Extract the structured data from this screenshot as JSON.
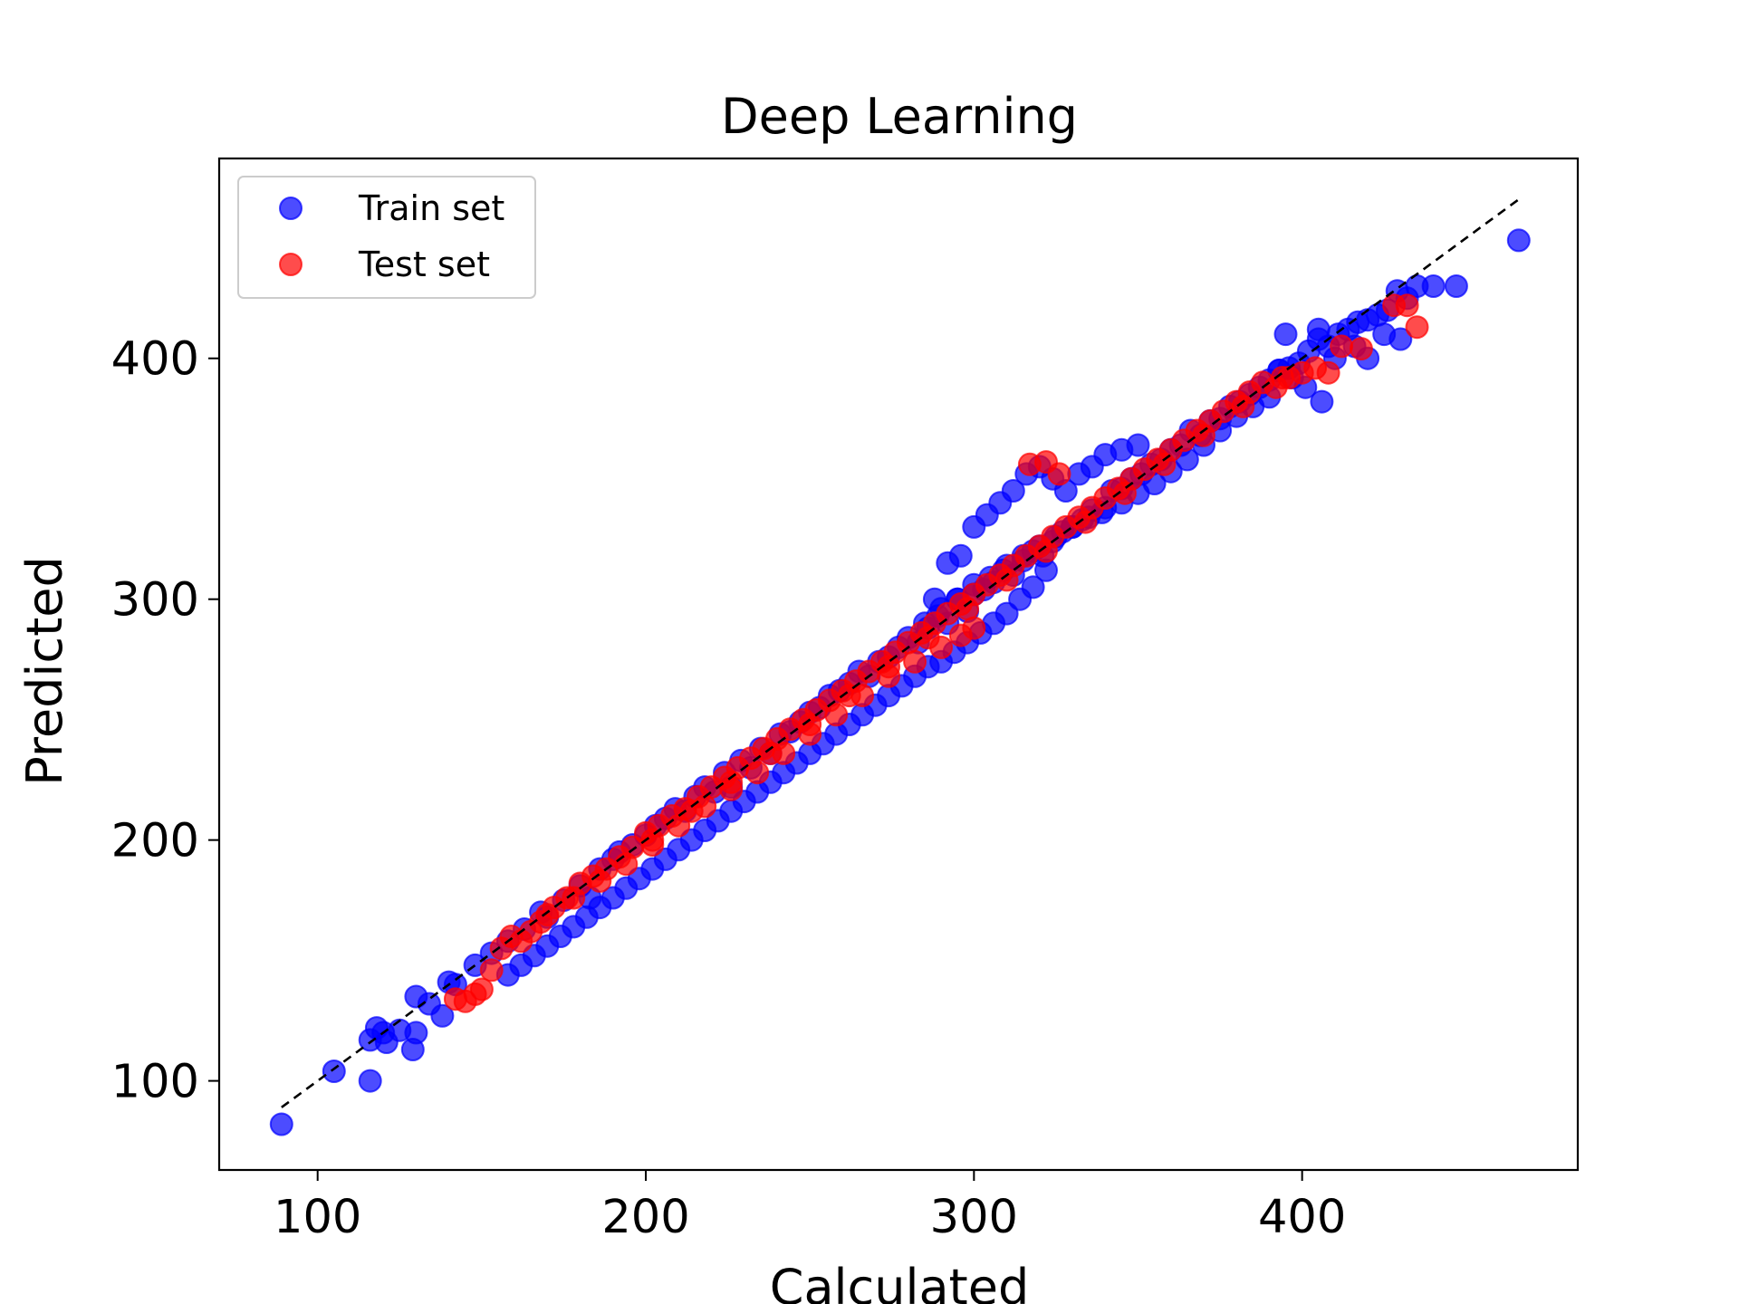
{
  "chart_data": {
    "type": "scatter",
    "title": "Deep Learning",
    "xlabel": "Calculated",
    "ylabel": "Predicted",
    "xlim": [
      70,
      484
    ],
    "ylim": [
      63,
      483
    ],
    "xticks": [
      100,
      200,
      300,
      400
    ],
    "yticks": [
      100,
      200,
      300,
      400
    ],
    "grid": false,
    "legend_position": "upper-left",
    "reference_line": {
      "style": "dashed",
      "color": "#000000",
      "x": [
        89,
        466
      ],
      "y": [
        89,
        466
      ]
    },
    "series": [
      {
        "name": "Train set",
        "color": "#0000ff",
        "alpha": 0.7,
        "x": [
          89,
          105,
          116,
          116,
          118,
          120,
          121,
          125,
          129,
          130,
          130,
          134,
          138,
          140,
          142,
          148,
          153,
          158,
          163,
          168,
          170,
          175,
          180,
          183,
          186,
          190,
          192,
          196,
          200,
          203,
          206,
          209,
          212,
          215,
          218,
          221,
          224,
          226,
          229,
          232,
          235,
          238,
          241,
          244,
          247,
          250,
          253,
          256,
          259,
          262,
          265,
          268,
          271,
          274,
          277,
          280,
          283,
          286,
          289,
          292,
          295,
          298,
          300,
          303,
          306,
          309,
          312,
          315,
          318,
          321,
          324,
          327,
          330,
          333,
          336,
          339,
          342,
          345,
          348,
          351,
          354,
          357,
          360,
          363,
          366,
          369,
          372,
          375,
          378,
          381,
          384,
          387,
          390,
          393,
          396,
          399,
          402,
          405,
          408,
          411,
          414,
          417,
          420,
          423,
          426,
          429,
          432,
          435,
          440,
          447,
          466,
          288,
          292,
          296,
          300,
          304,
          308,
          312,
          316,
          320,
          324,
          328,
          332,
          336,
          340,
          345,
          350,
          322,
          318,
          314,
          310,
          306,
          302,
          298,
          294,
          290,
          286,
          282,
          278,
          274,
          270,
          266,
          262,
          258,
          254,
          250,
          246,
          242,
          238,
          234,
          230,
          226,
          222,
          218,
          214,
          210,
          206,
          202,
          198,
          194,
          190,
          186,
          182,
          178,
          174,
          170,
          166,
          162,
          158,
          395,
          393,
          405,
          410,
          416,
          420,
          425,
          430,
          406,
          401,
          397,
          390,
          385,
          380,
          375,
          370,
          365,
          360,
          355,
          350,
          345,
          340,
          335,
          330,
          325,
          320,
          315,
          310,
          305,
          300,
          295,
          290,
          285
        ],
        "y": [
          82,
          104,
          100,
          117,
          122,
          120,
          116,
          121,
          113,
          135,
          120,
          132,
          127,
          141,
          140,
          148,
          153,
          158,
          163,
          170,
          168,
          175,
          181,
          176,
          188,
          192,
          195,
          198,
          202,
          206,
          209,
          213,
          212,
          218,
          222,
          220,
          228,
          222,
          233,
          230,
          238,
          236,
          244,
          245,
          249,
          253,
          255,
          260,
          262,
          265,
          270,
          268,
          274,
          276,
          280,
          284,
          282,
          288,
          293,
          290,
          300,
          295,
          302,
          304,
          307,
          312,
          310,
          316,
          320,
          318,
          324,
          328,
          330,
          333,
          337,
          336,
          345,
          346,
          350,
          352,
          356,
          358,
          362,
          364,
          370,
          368,
          374,
          375,
          380,
          382,
          385,
          388,
          391,
          395,
          396,
          398,
          403,
          408,
          405,
          410,
          412,
          415,
          416,
          418,
          420,
          428,
          425,
          430,
          430,
          430,
          449,
          300,
          315,
          318,
          330,
          335,
          340,
          345,
          352,
          355,
          350,
          345,
          352,
          355,
          360,
          362,
          364,
          312,
          305,
          300,
          294,
          290,
          286,
          282,
          278,
          274,
          272,
          268,
          264,
          260,
          256,
          252,
          248,
          244,
          240,
          236,
          232,
          228,
          224,
          220,
          216,
          212,
          208,
          204,
          200,
          196,
          192,
          188,
          184,
          180,
          176,
          172,
          168,
          164,
          160,
          156,
          152,
          148,
          144,
          410,
          395,
          412,
          400,
          405,
          400,
          410,
          408,
          382,
          388,
          392,
          384,
          380,
          376,
          370,
          364,
          358,
          353,
          348,
          344,
          340,
          338,
          334,
          330,
          326,
          322,
          318,
          314,
          309,
          306,
          300,
          296,
          290
        ]
      },
      {
        "name": "Test set",
        "color": "#ff0000",
        "alpha": 0.7,
        "x": [
          142,
          145,
          148,
          150,
          153,
          156,
          159,
          162,
          165,
          168,
          172,
          176,
          180,
          184,
          188,
          192,
          196,
          200,
          204,
          208,
          212,
          216,
          220,
          224,
          228,
          232,
          236,
          240,
          244,
          248,
          252,
          256,
          260,
          264,
          268,
          272,
          276,
          280,
          284,
          288,
          292,
          296,
          300,
          304,
          308,
          312,
          316,
          320,
          324,
          328,
          332,
          336,
          340,
          344,
          348,
          352,
          356,
          360,
          364,
          368,
          372,
          376,
          380,
          384,
          388,
          392,
          396,
          400,
          404,
          408,
          412,
          418,
          428,
          432,
          435,
          317,
          322,
          326,
          300,
          296,
          290,
          282,
          274,
          266,
          258,
          250,
          242,
          234,
          226,
          218,
          210,
          202,
          194,
          186,
          178,
          170,
          202,
          214,
          226,
          238,
          250,
          262,
          274,
          286,
          298,
          310,
          322,
          334,
          346,
          358,
          370,
          382,
          394
        ],
        "y": [
          134,
          133,
          136,
          138,
          146,
          155,
          160,
          158,
          162,
          166,
          172,
          176,
          182,
          185,
          188,
          193,
          197,
          203,
          206,
          210,
          213,
          218,
          222,
          226,
          230,
          234,
          238,
          242,
          246,
          250,
          254,
          258,
          262,
          266,
          270,
          274,
          278,
          282,
          286,
          290,
          294,
          298,
          302,
          306,
          310,
          314,
          318,
          322,
          326,
          330,
          334,
          338,
          342,
          346,
          350,
          354,
          358,
          362,
          366,
          370,
          374,
          378,
          382,
          386,
          390,
          388,
          392,
          394,
          396,
          394,
          405,
          404,
          422,
          422,
          413,
          356,
          357,
          352,
          288,
          285,
          280,
          274,
          268,
          260,
          252,
          244,
          236,
          228,
          221,
          214,
          206,
          198,
          190,
          183,
          176,
          169,
          200,
          212,
          224,
          236,
          248,
          260,
          272,
          284,
          296,
          308,
          320,
          332,
          344,
          356,
          368,
          380,
          392
        ]
      }
    ]
  }
}
